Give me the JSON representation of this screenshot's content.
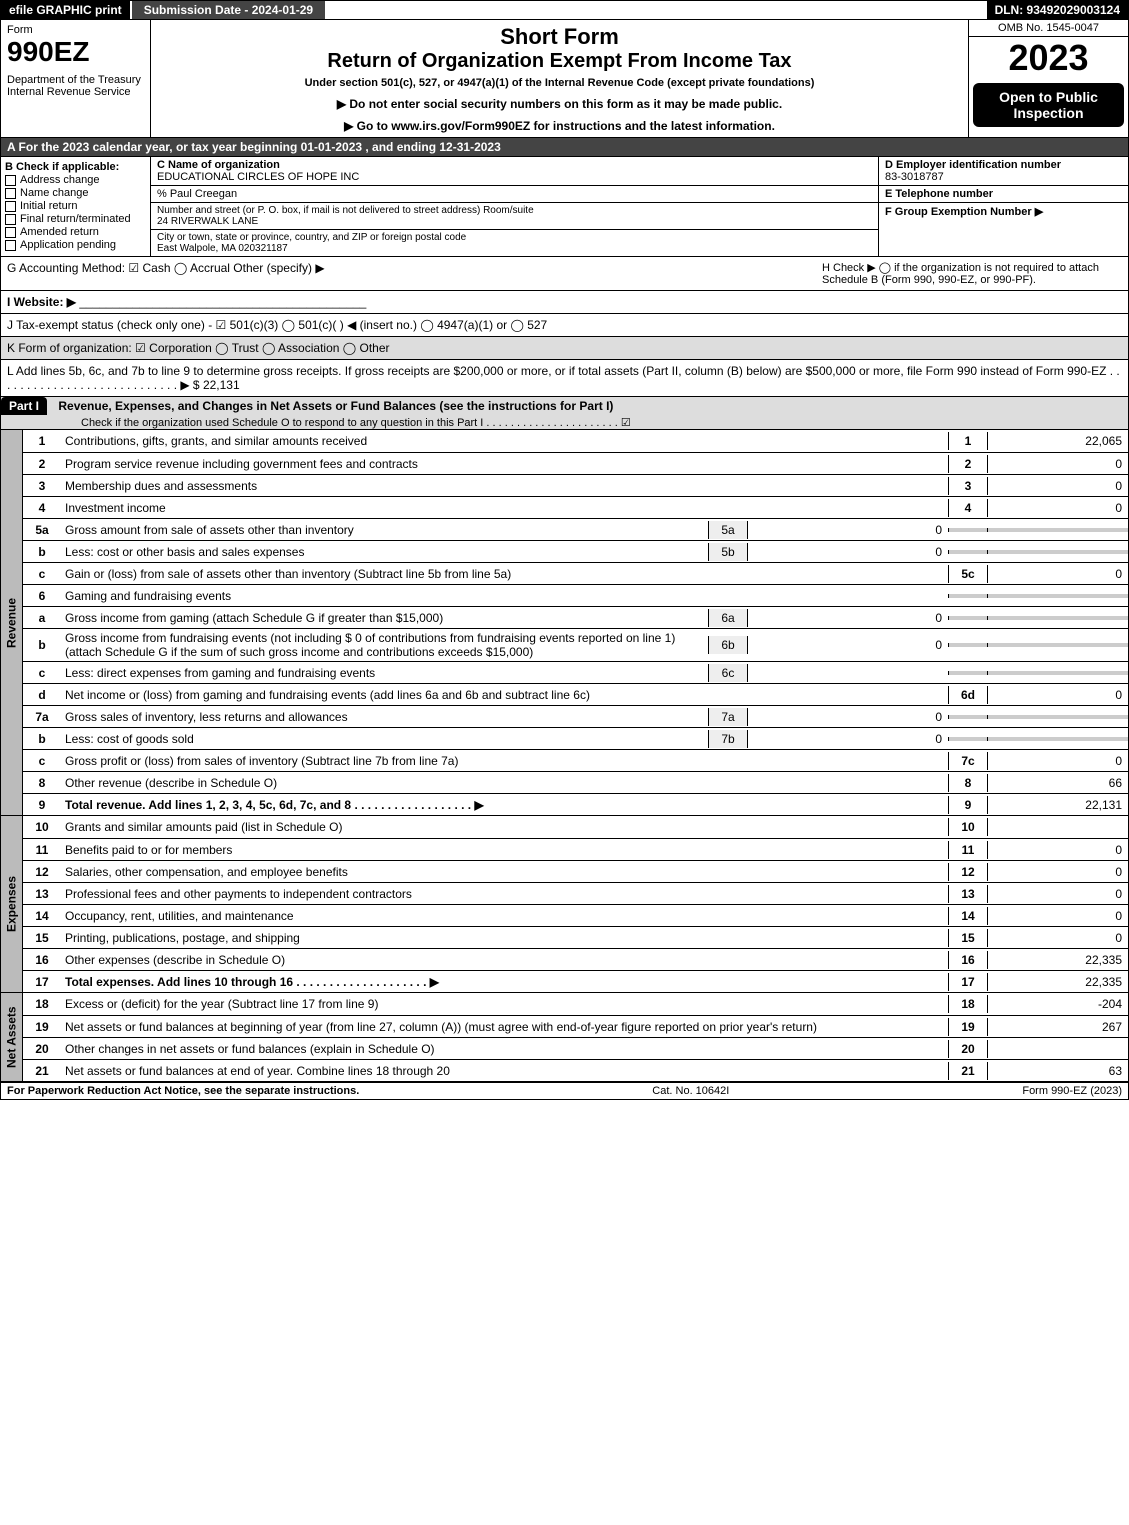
{
  "topbar": {
    "efile": "efile GRAPHIC print",
    "submission": "Submission Date - 2024-01-29",
    "dln": "DLN: 93492029003124"
  },
  "header": {
    "formword": "Form",
    "formnum": "990EZ",
    "dept": "Department of the Treasury\nInternal Revenue Service",
    "short": "Short Form",
    "return": "Return of Organization Exempt From Income Tax",
    "under": "Under section 501(c), 527, or 4947(a)(1) of the Internal Revenue Code (except private foundations)",
    "note1": "▶ Do not enter social security numbers on this form as it may be made public.",
    "note2": "▶ Go to www.irs.gov/Form990EZ for instructions and the latest information.",
    "omb": "OMB No. 1545-0047",
    "year": "2023",
    "open": "Open to Public Inspection"
  },
  "rowA": "A  For the 2023 calendar year, or tax year beginning 01-01-2023 , and ending 12-31-2023",
  "B": {
    "label": "B  Check if applicable:",
    "opts": [
      "Address change",
      "Name change",
      "Initial return",
      "Final return/terminated",
      "Amended return",
      "Application pending"
    ]
  },
  "C": {
    "label": "C Name of organization",
    "org": "EDUCATIONAL CIRCLES OF HOPE INC",
    "care": "% Paul Creegan",
    "streetlabel": "Number and street (or P. O. box, if mail is not delivered to street address)      Room/suite",
    "street": "24 RIVERWALK LANE",
    "citylabel": "City or town, state or province, country, and ZIP or foreign postal code",
    "city": "East Walpole, MA  020321187"
  },
  "D": {
    "label": "D Employer identification number",
    "val": "83-3018787"
  },
  "E": {
    "label": "E Telephone number",
    "val": ""
  },
  "F": {
    "label": "F Group Exemption Number  ▶",
    "val": ""
  },
  "G": "G Accounting Method:   ☑ Cash   ◯ Accrual   Other (specify) ▶",
  "H": "H   Check ▶  ◯  if the organization is not required to attach Schedule B (Form 990, 990-EZ, or 990-PF).",
  "I": "I Website: ▶",
  "J": "J Tax-exempt status (check only one) - ☑ 501(c)(3) ◯ 501(c)(  ) ◀ (insert no.) ◯ 4947(a)(1) or ◯ 527",
  "K": "K Form of organization:  ☑ Corporation  ◯ Trust  ◯ Association  ◯ Other",
  "L": "L Add lines 5b, 6c, and 7b to line 9 to determine gross receipts. If gross receipts are $200,000 or more, or if total assets (Part II, column (B) below) are $500,000 or more, file Form 990 instead of Form 990-EZ  . . . . . . . . . . . . . . . . . . . . . . . . . . . . ▶ $ 22,131",
  "part1": {
    "title": "Revenue, Expenses, and Changes in Net Assets or Fund Balances (see the instructions for Part I)",
    "check": "Check if the organization used Schedule O to respond to any question in this Part I . . . . . . . . . . . . . . . . . . . . . . ☑"
  },
  "sections": {
    "revenue": "Revenue",
    "expenses": "Expenses",
    "netassets": "Net Assets"
  },
  "lines": [
    {
      "n": "1",
      "d": "Contributions, gifts, grants, and similar amounts received",
      "rn": "1",
      "rv": "22,065"
    },
    {
      "n": "2",
      "d": "Program service revenue including government fees and contracts",
      "rn": "2",
      "rv": "0"
    },
    {
      "n": "3",
      "d": "Membership dues and assessments",
      "rn": "3",
      "rv": "0"
    },
    {
      "n": "4",
      "d": "Investment income",
      "rn": "4",
      "rv": "0"
    },
    {
      "n": "5a",
      "d": "Gross amount from sale of assets other than inventory",
      "mn": "5a",
      "mv": "0",
      "grey": true
    },
    {
      "n": "b",
      "d": "Less: cost or other basis and sales expenses",
      "mn": "5b",
      "mv": "0",
      "grey": true
    },
    {
      "n": "c",
      "d": "Gain or (loss) from sale of assets other than inventory (Subtract line 5b from line 5a)",
      "rn": "5c",
      "rv": "0"
    },
    {
      "n": "6",
      "d": "Gaming and fundraising events",
      "grey": true
    },
    {
      "n": "a",
      "d": "Gross income from gaming (attach Schedule G if greater than $15,000)",
      "mn": "6a",
      "mv": "0",
      "grey": true
    },
    {
      "n": "b",
      "d": "Gross income from fundraising events (not including $ 0 of contributions from fundraising events reported on line 1) (attach Schedule G if the sum of such gross income and contributions exceeds $15,000)",
      "mn": "6b",
      "mv": "0",
      "grey": true
    },
    {
      "n": "c",
      "d": "Less: direct expenses from gaming and fundraising events",
      "mn": "6c",
      "mv": "",
      "grey": true
    },
    {
      "n": "d",
      "d": "Net income or (loss) from gaming and fundraising events (add lines 6a and 6b and subtract line 6c)",
      "rn": "6d",
      "rv": "0"
    },
    {
      "n": "7a",
      "d": "Gross sales of inventory, less returns and allowances",
      "mn": "7a",
      "mv": "0",
      "grey": true
    },
    {
      "n": "b",
      "d": "Less: cost of goods sold",
      "mn": "7b",
      "mv": "0",
      "grey": true
    },
    {
      "n": "c",
      "d": "Gross profit or (loss) from sales of inventory (Subtract line 7b from line 7a)",
      "rn": "7c",
      "rv": "0"
    },
    {
      "n": "8",
      "d": "Other revenue (describe in Schedule O)",
      "rn": "8",
      "rv": "66"
    },
    {
      "n": "9",
      "d": "Total revenue. Add lines 1, 2, 3, 4, 5c, 6d, 7c, and 8  . . . . . . . . . . . . . . . . . . ▶",
      "rn": "9",
      "rv": "22,131",
      "bold": true
    }
  ],
  "exp": [
    {
      "n": "10",
      "d": "Grants and similar amounts paid (list in Schedule O)",
      "rn": "10",
      "rv": ""
    },
    {
      "n": "11",
      "d": "Benefits paid to or for members",
      "rn": "11",
      "rv": "0"
    },
    {
      "n": "12",
      "d": "Salaries, other compensation, and employee benefits",
      "rn": "12",
      "rv": "0"
    },
    {
      "n": "13",
      "d": "Professional fees and other payments to independent contractors",
      "rn": "13",
      "rv": "0"
    },
    {
      "n": "14",
      "d": "Occupancy, rent, utilities, and maintenance",
      "rn": "14",
      "rv": "0"
    },
    {
      "n": "15",
      "d": "Printing, publications, postage, and shipping",
      "rn": "15",
      "rv": "0"
    },
    {
      "n": "16",
      "d": "Other expenses (describe in Schedule O)",
      "rn": "16",
      "rv": "22,335"
    },
    {
      "n": "17",
      "d": "Total expenses. Add lines 10 through 16  . . . . . . . . . . . . . . . . . . . . ▶",
      "rn": "17",
      "rv": "22,335",
      "bold": true
    }
  ],
  "net": [
    {
      "n": "18",
      "d": "Excess or (deficit) for the year (Subtract line 17 from line 9)",
      "rn": "18",
      "rv": "-204"
    },
    {
      "n": "19",
      "d": "Net assets or fund balances at beginning of year (from line 27, column (A)) (must agree with end-of-year figure reported on prior year's return)",
      "rn": "19",
      "rv": "267"
    },
    {
      "n": "20",
      "d": "Other changes in net assets or fund balances (explain in Schedule O)",
      "rn": "20",
      "rv": ""
    },
    {
      "n": "21",
      "d": "Net assets or fund balances at end of year. Combine lines 18 through 20",
      "rn": "21",
      "rv": "63"
    }
  ],
  "footer": {
    "left": "For Paperwork Reduction Act Notice, see the separate instructions.",
    "mid": "Cat. No. 10642I",
    "right": "Form 990-EZ (2023)"
  }
}
